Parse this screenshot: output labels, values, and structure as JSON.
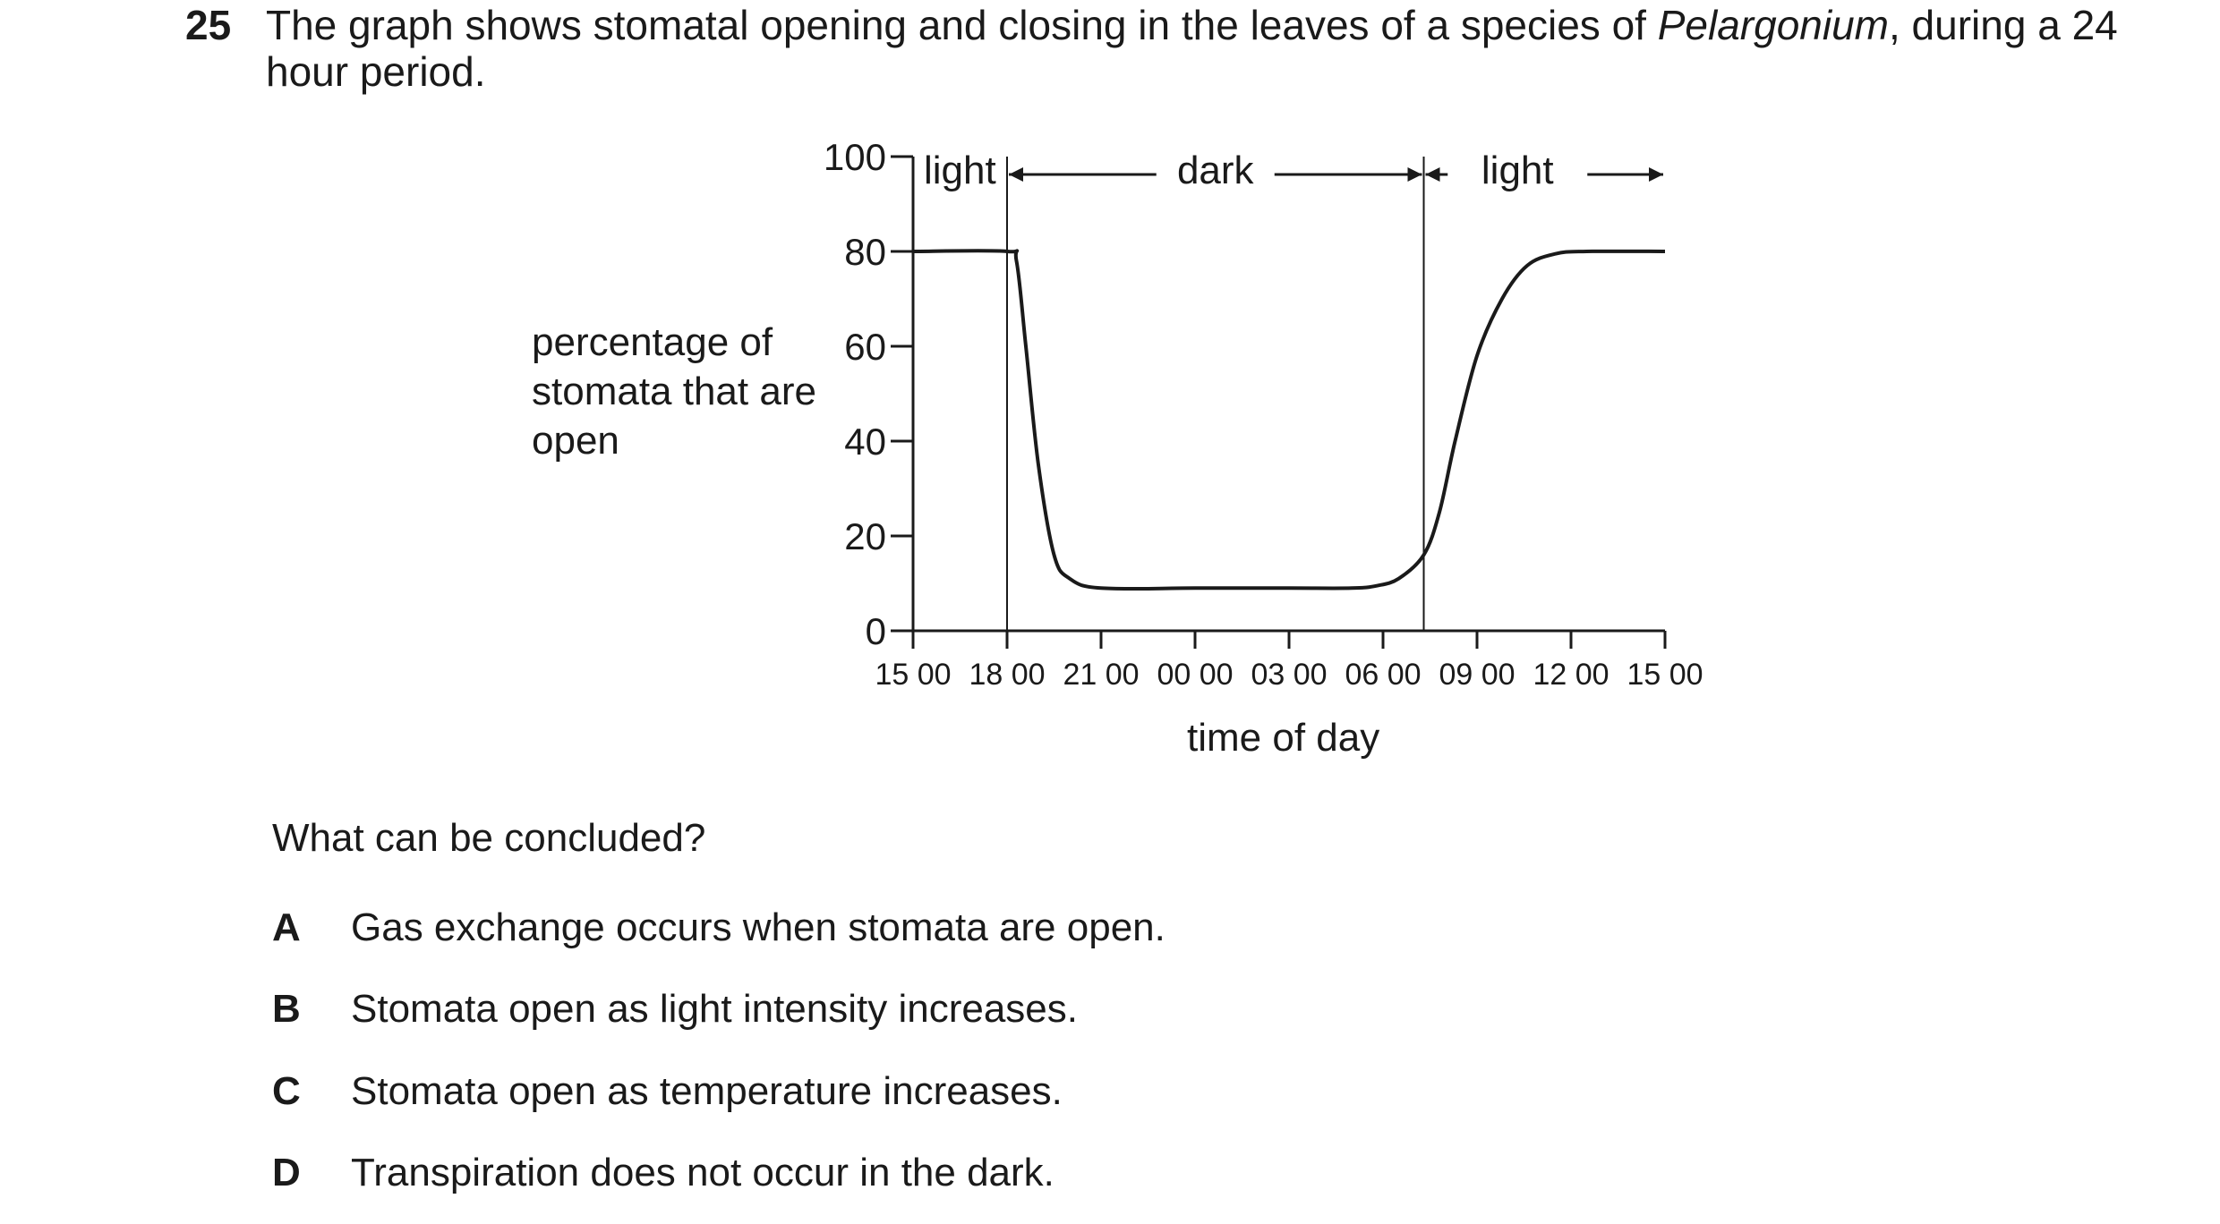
{
  "question": {
    "number": "25",
    "text_before": "The graph shows stomatal opening and closing in the leaves of a species of ",
    "text_italic": "Pelargonium",
    "text_after": ", during a 24 hour period."
  },
  "prompt": "What can be concluded?",
  "options": [
    {
      "letter": "A",
      "text": "Gas exchange occurs when stomata are open."
    },
    {
      "letter": "B",
      "text": "Stomata open as light intensity increases."
    },
    {
      "letter": "C",
      "text": "Stomata open as temperature increases."
    },
    {
      "letter": "D",
      "text": "Transpiration does not occur in the dark."
    }
  ],
  "chart_data": {
    "type": "line",
    "title": "",
    "xlabel": "time of day",
    "ylabel": "percentage of stomata that are open",
    "x_ticks": [
      "15 00",
      "18 00",
      "21 00",
      "00 00",
      "03 00",
      "06 00",
      "09 00",
      "12 00",
      "15 00"
    ],
    "y_ticks": [
      0,
      20,
      40,
      60,
      80,
      100
    ],
    "ylim": [
      0,
      100
    ],
    "xlim_hours": [
      0,
      24
    ],
    "period_labels": [
      {
        "label": "light",
        "start_hours": 0,
        "end_hours": 3
      },
      {
        "label": "dark",
        "start_hours": 3,
        "end_hours": 16.3
      },
      {
        "label": "light",
        "start_hours": 16.3,
        "end_hours": 24
      }
    ],
    "series": [
      {
        "name": "",
        "x_hours": [
          0,
          3,
          3.3,
          3.6,
          4.0,
          4.5,
          5.0,
          6.0,
          9.0,
          12.0,
          14.0,
          14.8,
          15.5,
          16.3,
          16.8,
          17.3,
          18.0,
          18.8,
          19.6,
          20.5,
          21.5,
          24.0
        ],
        "values": [
          80,
          80,
          78,
          60,
          35,
          16,
          11,
          9,
          9,
          9,
          9,
          9.5,
          11,
          16,
          25,
          40,
          58,
          70,
          77,
          79.5,
          80,
          80
        ]
      }
    ]
  }
}
